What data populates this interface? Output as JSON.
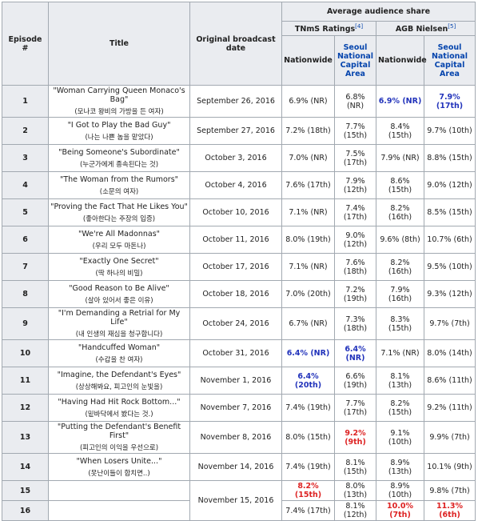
{
  "table": {
    "headers": {
      "episode": "Episode #",
      "title": "Title",
      "date": "Original broadcast date",
      "share": "Average audience share",
      "tnms": "TNmS Ratings",
      "tnms_ref": "[4]",
      "agb": "AGB Nielsen",
      "agb_ref": "[5]",
      "sub": [
        "Nationwide",
        "Seoul National Capital Area",
        "Nationwide",
        "Seoul National Capital Area"
      ]
    },
    "rows": [
      {
        "episode": 1,
        "title": "\"Woman Carrying Queen Monaco's Bag\"",
        "korean": "(모나코 왕비의 가방을 든 여자)",
        "date": "September 26, 2016",
        "ratings": [
          "6.9% (NR)",
          "6.8% (NR)",
          {
            "text": "6.9% (NR)",
            "color": "#2233bb"
          },
          {
            "text": "7.9% (17th)",
            "color": "#2233bb"
          }
        ]
      },
      {
        "episode": 2,
        "title": "\"I Got to Play the Bad Guy\"",
        "korean": "(나는 나쁜 놈을 맡았다)",
        "date": "September 27, 2016",
        "ratings": [
          "7.2% (18th)",
          "7.7% (15th)",
          "8.4% (15th)",
          "9.7% (10th)"
        ]
      },
      {
        "episode": 3,
        "title": "\"Being Someone's Subordinate\"",
        "korean": "(누군가에게 종속된다는 것)",
        "date": "October 3, 2016",
        "ratings": [
          "7.0% (NR)",
          "7.5% (17th)",
          "7.9% (NR)",
          "8.8% (15th)"
        ]
      },
      {
        "episode": 4,
        "title": "\"The Woman from the Rumors\"",
        "korean": "(소문의 여자)",
        "date": "October 4, 2016",
        "ratings": [
          "7.6% (17th)",
          "7.9% (12th)",
          "8.6% (15th)",
          "9.0% (12th)"
        ]
      },
      {
        "episode": 5,
        "title": "\"Proving the Fact That He Likes You\"",
        "korean": "(좋아한다는 주장의 입증)",
        "date": "October 10, 2016",
        "ratings": [
          "7.1% (NR)",
          "7.4% (17th)",
          "8.2% (16th)",
          "8.5% (15th)"
        ]
      },
      {
        "episode": 6,
        "title": "\"We're All Madonnas\"",
        "korean": "(우리 모두 마돈나)",
        "date": "October 11, 2016",
        "ratings": [
          "8.0% (19th)",
          "9.0% (12th)",
          "9.6% (8th)",
          "10.7% (6th)"
        ]
      },
      {
        "episode": 7,
        "title": "\"Exactly One Secret\"",
        "korean": "(딱 하나의 비밀)",
        "date": "October 17, 2016",
        "ratings": [
          "7.1% (NR)",
          "7.6% (18th)",
          "8.2% (16th)",
          "9.5% (10th)"
        ]
      },
      {
        "episode": 8,
        "title": "\"Good Reason to Be Alive\"",
        "korean": "(살아 있어서 좋은 이유)",
        "date": "October 18, 2016",
        "ratings": [
          "7.0% (20th)",
          "7.2% (19th)",
          "7.9% (16th)",
          "9.3% (12th)"
        ]
      },
      {
        "episode": 9,
        "title": "\"I'm Demanding a Retrial for My Life\"",
        "korean": "(내 인생의 재심을 청구합니다)",
        "date": "October 24, 2016",
        "ratings": [
          "6.7% (NR)",
          "7.3% (18th)",
          "8.3% (15th)",
          "9.7% (7th)"
        ]
      },
      {
        "episode": 10,
        "title": "\"Handcuffed Woman\"",
        "korean": "(수갑을 찬 여자)",
        "date": "October 31, 2016",
        "ratings": [
          {
            "text": "6.4% (NR)",
            "color": "#2233bb"
          },
          {
            "text": "6.4% (NR)",
            "color": "#2233bb"
          },
          "7.1% (NR)",
          "8.0% (14th)"
        ]
      },
      {
        "episode": 11,
        "title": "\"Imagine, the Defendant's Eyes\"",
        "korean": "(상상해봐요, 피고인의 눈빛을)",
        "date": "November 1, 2016",
        "ratings": [
          {
            "text": "6.4% (20th)",
            "color": "#2233bb"
          },
          "6.6% (19th)",
          "8.1% (13th)",
          "8.6% (11th)"
        ]
      },
      {
        "episode": 12,
        "title": "\"Having Had Hit Rock Bottom...\"",
        "korean": "(밑바닥에서 봤다는 것.)",
        "date": "November 7, 2016",
        "ratings": [
          "7.4% (19th)",
          "7.7% (17th)",
          "8.2% (15th)",
          "9.2% (11th)"
        ]
      },
      {
        "episode": 13,
        "title": "\"Putting the Defendant's Benefit First\"",
        "korean": "(피고인의 이익을 우선으로)",
        "date": "November 8, 2016",
        "ratings": [
          "8.0% (15th)",
          {
            "text": "9.2% (9th)",
            "color": "#dd2222"
          },
          "9.1% (10th)",
          "9.9% (7th)"
        ]
      },
      {
        "episode": 14,
        "title": "\"When Losers Unite...\"",
        "korean": "(못난이들이 합치면..)",
        "date": "November 14, 2016",
        "ratings": [
          "7.4% (19th)",
          "8.1% (15th)",
          "8.9% (13th)",
          "10.1% (9th)"
        ]
      },
      {
        "episode": 15,
        "date": "November 15, 2016",
        "ratings": [
          {
            "text": "8.2% (15th)",
            "color": "#dd2222"
          },
          "8.0% (13th)",
          "8.9% (10th)",
          "9.8% (7th)"
        ]
      },
      {
        "episode": 16,
        "ratings": [
          "7.4% (17th)",
          "8.1% (12th)",
          {
            "text": "10.0% (7th)",
            "color": "#dd2222"
          },
          {
            "text": "11.3% (6th)",
            "color": "#dd2222"
          }
        ]
      }
    ]
  }
}
